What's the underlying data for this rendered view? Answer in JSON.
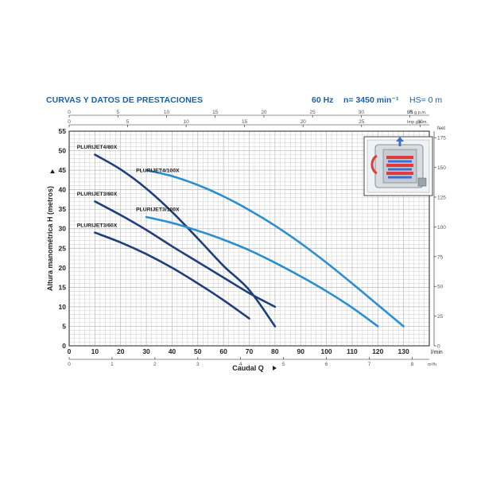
{
  "header": {
    "title": "CURVAS Y DATOS DE PRESTACIONES",
    "frequency": "60 Hz",
    "speed": "n= 3450 min⁻¹",
    "hs": "HS= 0 m"
  },
  "colors": {
    "dark_curve": "#1e3f7a",
    "light_curve": "#2a8fd0",
    "title_blue": "#1d5fa3",
    "grid": "#b9b9b9",
    "axis": "#222222"
  },
  "chart_data": {
    "type": "line",
    "xlabel": "Caudal Q",
    "ylabel": "Altura manométrica H (metros)",
    "x_unit": "l/min",
    "y_unit": "",
    "xlim": [
      0,
      140
    ],
    "ylim": [
      0,
      55
    ],
    "x_ticks": [
      0,
      10,
      20,
      30,
      40,
      50,
      60,
      70,
      80,
      90,
      100,
      110,
      120,
      130
    ],
    "y_ticks": [
      0,
      5,
      10,
      15,
      20,
      25,
      30,
      35,
      40,
      45,
      50,
      55
    ],
    "grid": true,
    "secondary_axes": {
      "top_us": {
        "unit": "US g.p.m.",
        "ticks": [
          0,
          5,
          10,
          15,
          20,
          25,
          30,
          35
        ]
      },
      "top_imp": {
        "unit": "Imp g.p.m.",
        "ticks": [
          0,
          5,
          10,
          15,
          20,
          25,
          30
        ]
      },
      "bottom_m3h": {
        "unit": "m³/h",
        "ticks": [
          0,
          1,
          2,
          3,
          4,
          5,
          6,
          7,
          8
        ]
      },
      "right_feet": {
        "unit": "feet",
        "ticks": [
          0,
          25,
          50,
          75,
          100,
          125,
          150,
          175
        ]
      }
    },
    "series": [
      {
        "name": "PLURIJET4/80X",
        "style": "dark",
        "label_at": [
          3,
          50.5
        ],
        "x": [
          10,
          20,
          30,
          40,
          50,
          60,
          70,
          80
        ],
        "y": [
          49,
          45.2,
          40.3,
          34.3,
          27.5,
          20.5,
          14.3,
          5
        ]
      },
      {
        "name": "PLURIJET4/100X",
        "style": "light",
        "label_at": [
          26,
          44.5
        ],
        "x": [
          30,
          40,
          50,
          60,
          70,
          80,
          90,
          100,
          110,
          120,
          130
        ],
        "y": [
          45,
          43.5,
          41.2,
          38.3,
          34.8,
          30.8,
          26.3,
          21.3,
          16,
          10.5,
          5
        ]
      },
      {
        "name": "PLURIJET3/80X",
        "style": "dark",
        "label_at": [
          3,
          38.5
        ],
        "x": [
          10,
          20,
          30,
          40,
          50,
          60,
          70,
          80
        ],
        "y": [
          37,
          33.5,
          29.7,
          25.5,
          21.5,
          17.5,
          13.5,
          10
        ]
      },
      {
        "name": "PLURIJET3/100X",
        "style": "light",
        "label_at": [
          26,
          34.5
        ],
        "x": [
          30,
          40,
          50,
          60,
          70,
          80,
          90,
          100,
          110,
          120
        ],
        "y": [
          33,
          31.5,
          29.5,
          27.2,
          24.5,
          21.3,
          17.8,
          14,
          9.8,
          5
        ]
      },
      {
        "name": "PLURIJET3/60X",
        "style": "dark",
        "label_at": [
          3,
          30.5
        ],
        "x": [
          10,
          20,
          30,
          40,
          50,
          60,
          70
        ],
        "y": [
          29,
          26.5,
          23.5,
          20,
          16,
          11.7,
          7
        ]
      }
    ]
  }
}
